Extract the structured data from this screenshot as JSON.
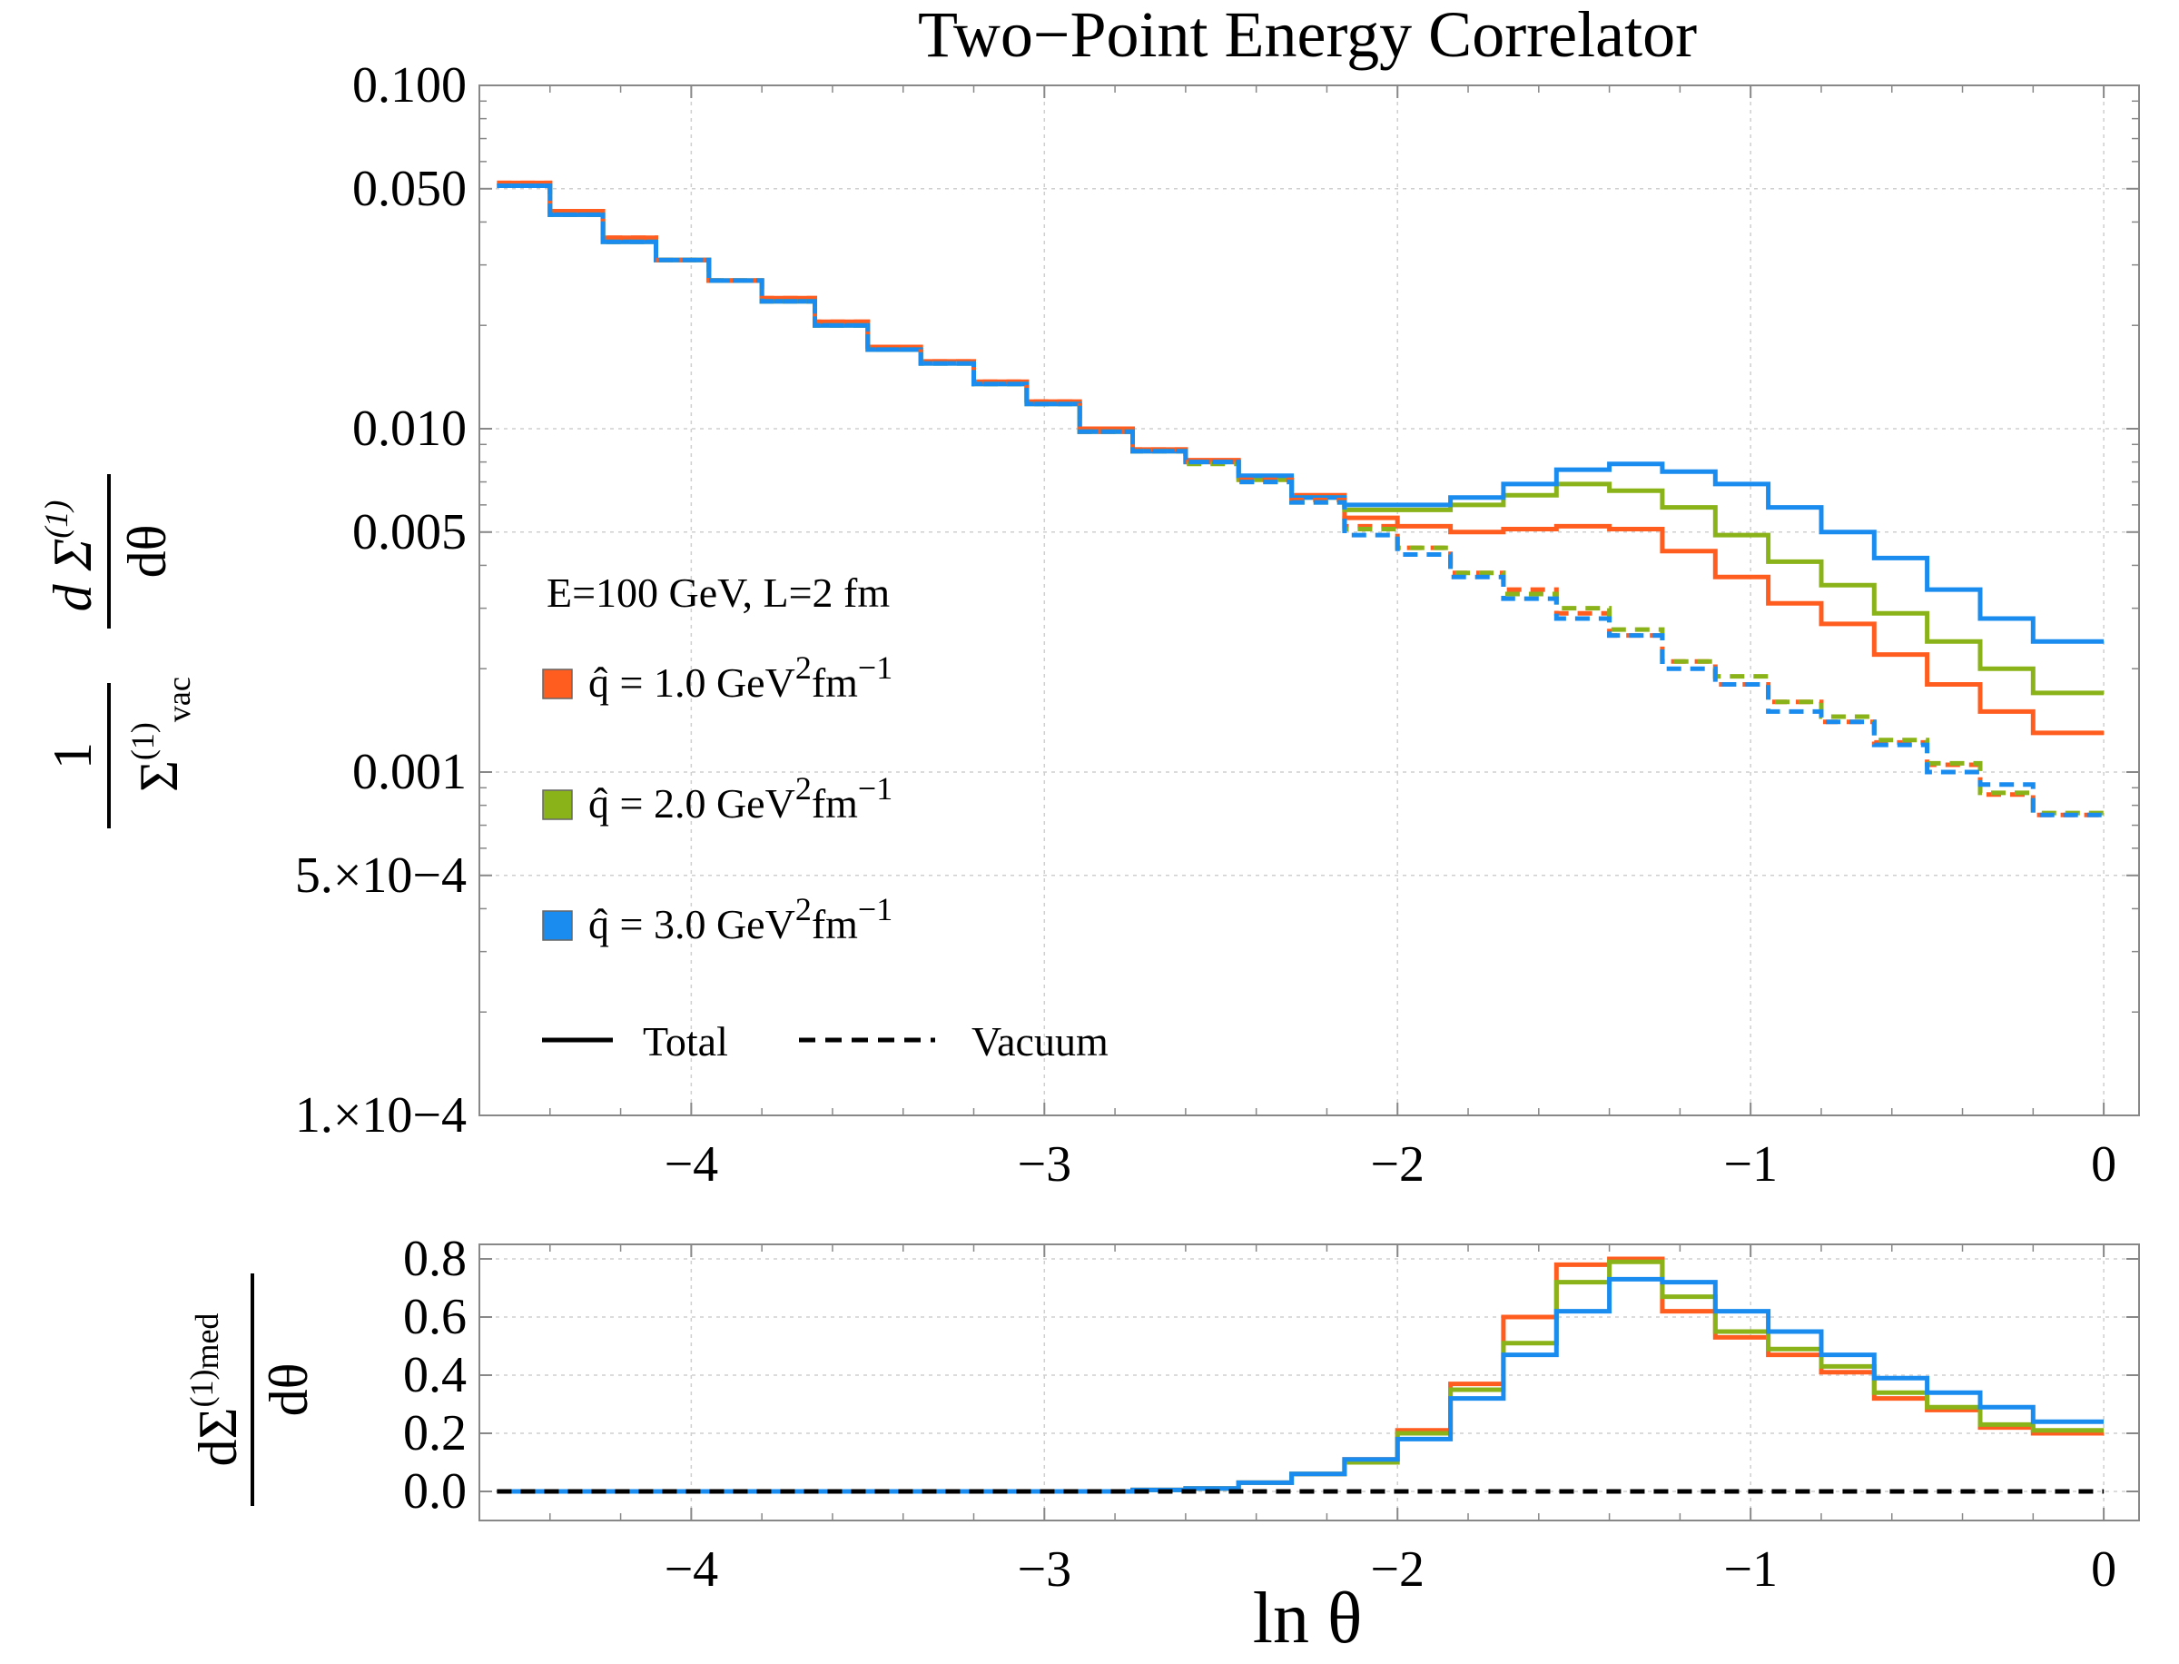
{
  "chart_data": [
    {
      "type": "line",
      "step": true,
      "title": "Two−Point Energy Correlator",
      "xlabel": "ln θ",
      "ylabel": {
        "numerator_text": "1",
        "denominator_text": "Σ",
        "denominator_sup": "(1)",
        "denominator_sub": "vac",
        "derivative_top": "d Σ",
        "derivative_top_sup": "(1)",
        "derivative_bottom": "dθ"
      },
      "yscale": "log",
      "xlim": [
        -4.6,
        0.1
      ],
      "ylim": [
        0.0001,
        0.1
      ],
      "xticks": [
        -4,
        -3,
        -2,
        -1,
        0
      ],
      "xtick_labels": [
        "−4",
        "−3",
        "−2",
        "−1",
        "0"
      ],
      "yticks": [
        0.1,
        0.05,
        0.01,
        0.005,
        0.001,
        0.0005,
        0.0001
      ],
      "ytick_labels": [
        "0.100",
        "0.050",
        "0.010",
        "0.005",
        "0.001",
        "5.×10−4",
        "1.×10−4"
      ],
      "grid": true,
      "x_edges": [
        -4.55,
        -4.4,
        -4.25,
        -4.1,
        -3.95,
        -3.8,
        -3.65,
        -3.5,
        -3.35,
        -3.2,
        -3.05,
        -2.9,
        -2.75,
        -2.6,
        -2.45,
        -2.3,
        -2.15,
        -2.0,
        -1.85,
        -1.7,
        -1.55,
        -1.4,
        -1.25,
        -1.1,
        -0.95,
        -0.8,
        -0.65,
        -0.5,
        -0.35,
        -0.2,
        0.0
      ],
      "legend": {
        "header": "E=100 GeV, L=2 fm",
        "entries": [
          {
            "label_pre": "q̂ = 1.0 GeV",
            "label_sup1": "2",
            "label_mid": "fm",
            "label_sup2": "−1",
            "color": "#ff5c1f"
          },
          {
            "label_pre": "q̂ = 2.0 GeV",
            "label_sup1": "2",
            "label_mid": "fm",
            "label_sup2": "−1",
            "color": "#8ab319"
          },
          {
            "label_pre": "q̂ = 3.0 GeV",
            "label_sup1": "2",
            "label_mid": "fm",
            "label_sup2": "−1",
            "color": "#1a8cef"
          }
        ],
        "style_total": "Total",
        "style_vacuum": "Vacuum"
      },
      "series": [
        {
          "name": "q̂ = 1.0 Total",
          "color": "#ff5c1f",
          "style": "solid",
          "values": [
            0.052,
            0.043,
            0.036,
            0.031,
            0.027,
            0.024,
            0.0205,
            0.0173,
            0.0157,
            0.0137,
            0.012,
            0.01,
            0.0087,
            0.0081,
            0.0072,
            0.0064,
            0.0055,
            0.0052,
            0.005,
            0.0051,
            0.0052,
            0.0051,
            0.0044,
            0.0037,
            0.0031,
            0.0027,
            0.0022,
            0.0018,
            0.0015,
            0.0013,
            0.00117
          ]
        },
        {
          "name": "q̂ = 2.0 Total",
          "color": "#8ab319",
          "style": "solid",
          "values": [
            0.051,
            0.042,
            0.035,
            0.031,
            0.027,
            0.0235,
            0.02,
            0.017,
            0.0155,
            0.0135,
            0.0118,
            0.0098,
            0.0086,
            0.008,
            0.0071,
            0.0063,
            0.0058,
            0.0058,
            0.006,
            0.0064,
            0.0069,
            0.0066,
            0.0059,
            0.0049,
            0.0041,
            0.0035,
            0.0029,
            0.0024,
            0.002,
            0.0017,
            0.0017
          ]
        },
        {
          "name": "q̂ = 3.0 Total",
          "color": "#1a8cef",
          "style": "solid",
          "values": [
            0.051,
            0.042,
            0.035,
            0.031,
            0.027,
            0.0235,
            0.02,
            0.017,
            0.0155,
            0.0135,
            0.0118,
            0.0098,
            0.0086,
            0.008,
            0.0073,
            0.0063,
            0.006,
            0.006,
            0.0063,
            0.0069,
            0.0076,
            0.0079,
            0.0075,
            0.0069,
            0.0059,
            0.005,
            0.0042,
            0.0034,
            0.0028,
            0.0024,
            0.0024
          ]
        },
        {
          "name": "q̂ = 1.0 Vacuum",
          "color": "#ff5c1f",
          "style": "dashed",
          "values": [
            0.052,
            0.043,
            0.036,
            0.031,
            0.027,
            0.024,
            0.0205,
            0.0173,
            0.0157,
            0.0137,
            0.012,
            0.0098,
            0.0087,
            0.008,
            0.0071,
            0.0062,
            0.0052,
            0.0045,
            0.0038,
            0.0034,
            0.0029,
            0.0025,
            0.0021,
            0.0018,
            0.0016,
            0.0014,
            0.00122,
            0.00105,
            0.00086,
            0.00075,
            0.00073
          ]
        },
        {
          "name": "q̂ = 2.0 Vacuum",
          "color": "#8ab319",
          "style": "dashed",
          "values": [
            0.051,
            0.042,
            0.035,
            0.031,
            0.027,
            0.0235,
            0.02,
            0.017,
            0.0155,
            0.0135,
            0.0118,
            0.0098,
            0.0086,
            0.0079,
            0.007,
            0.0061,
            0.0051,
            0.0045,
            0.0038,
            0.0033,
            0.003,
            0.0026,
            0.0021,
            0.0019,
            0.0016,
            0.00145,
            0.00124,
            0.00106,
            0.00087,
            0.00076,
            0.00074
          ]
        },
        {
          "name": "q̂ = 3.0 Vacuum",
          "color": "#1a8cef",
          "style": "dashed",
          "values": [
            0.051,
            0.042,
            0.035,
            0.031,
            0.027,
            0.0235,
            0.02,
            0.017,
            0.0155,
            0.0135,
            0.0118,
            0.0098,
            0.0086,
            0.008,
            0.007,
            0.0061,
            0.0049,
            0.0043,
            0.0037,
            0.0032,
            0.0028,
            0.0025,
            0.002,
            0.0018,
            0.0015,
            0.0014,
            0.0012,
            0.001,
            0.00092,
            0.00075,
            0.00075
          ]
        }
      ]
    },
    {
      "type": "line",
      "step": true,
      "xlabel": "ln θ",
      "ylabel": {
        "top": "dΣ",
        "top_sup": "(1)",
        "top_sub": "med",
        "bottom": "dθ"
      },
      "xlim": [
        -4.6,
        0.1
      ],
      "ylim": [
        -0.1,
        0.85
      ],
      "xticks": [
        -4,
        -3,
        -2,
        -1,
        0
      ],
      "xtick_labels": [
        "−4",
        "−3",
        "−2",
        "−1",
        "0"
      ],
      "yticks": [
        0.8,
        0.6,
        0.4,
        0.2,
        0.0
      ],
      "ytick_labels": [
        "0.8",
        "0.6",
        "0.4",
        "0.2",
        "0.0"
      ],
      "grid": true,
      "x_edges": [
        -4.55,
        -4.4,
        -4.25,
        -4.1,
        -3.95,
        -3.8,
        -3.65,
        -3.5,
        -3.35,
        -3.2,
        -3.05,
        -2.9,
        -2.75,
        -2.6,
        -2.45,
        -2.3,
        -2.15,
        -2.0,
        -1.85,
        -1.7,
        -1.55,
        -1.4,
        -1.25,
        -1.1,
        -0.95,
        -0.8,
        -0.65,
        -0.5,
        -0.35,
        -0.2,
        0.0
      ],
      "series": [
        {
          "name": "q̂ = 1.0",
          "color": "#ff5c1f",
          "style": "solid",
          "values": [
            0,
            0,
            0,
            0,
            0,
            0,
            0,
            0,
            0,
            0,
            0,
            0,
            0.005,
            0.01,
            0.03,
            0.06,
            0.11,
            0.21,
            0.37,
            0.6,
            0.78,
            0.8,
            0.62,
            0.53,
            0.47,
            0.41,
            0.32,
            0.28,
            0.22,
            0.2,
            0.2
          ]
        },
        {
          "name": "q̂ = 2.0",
          "color": "#8ab319",
          "style": "solid",
          "values": [
            0,
            0,
            0,
            0,
            0,
            0,
            0,
            0,
            0,
            0,
            0,
            0,
            0.005,
            0.01,
            0.03,
            0.06,
            0.1,
            0.2,
            0.35,
            0.51,
            0.72,
            0.79,
            0.67,
            0.55,
            0.49,
            0.43,
            0.34,
            0.29,
            0.23,
            0.21,
            0.21
          ]
        },
        {
          "name": "q̂ = 3.0",
          "color": "#1a8cef",
          "style": "solid",
          "values": [
            0,
            0,
            0,
            0,
            0,
            0,
            0,
            0,
            0,
            0,
            0,
            0,
            0.005,
            0.01,
            0.03,
            0.06,
            0.11,
            0.18,
            0.32,
            0.47,
            0.62,
            0.73,
            0.72,
            0.62,
            0.55,
            0.47,
            0.39,
            0.34,
            0.29,
            0.24,
            0.24
          ]
        },
        {
          "name": "reference",
          "color": "#000000",
          "style": "dashed",
          "x": [
            -4.55,
            0.0
          ],
          "values": [
            0,
            0
          ]
        }
      ]
    }
  ]
}
